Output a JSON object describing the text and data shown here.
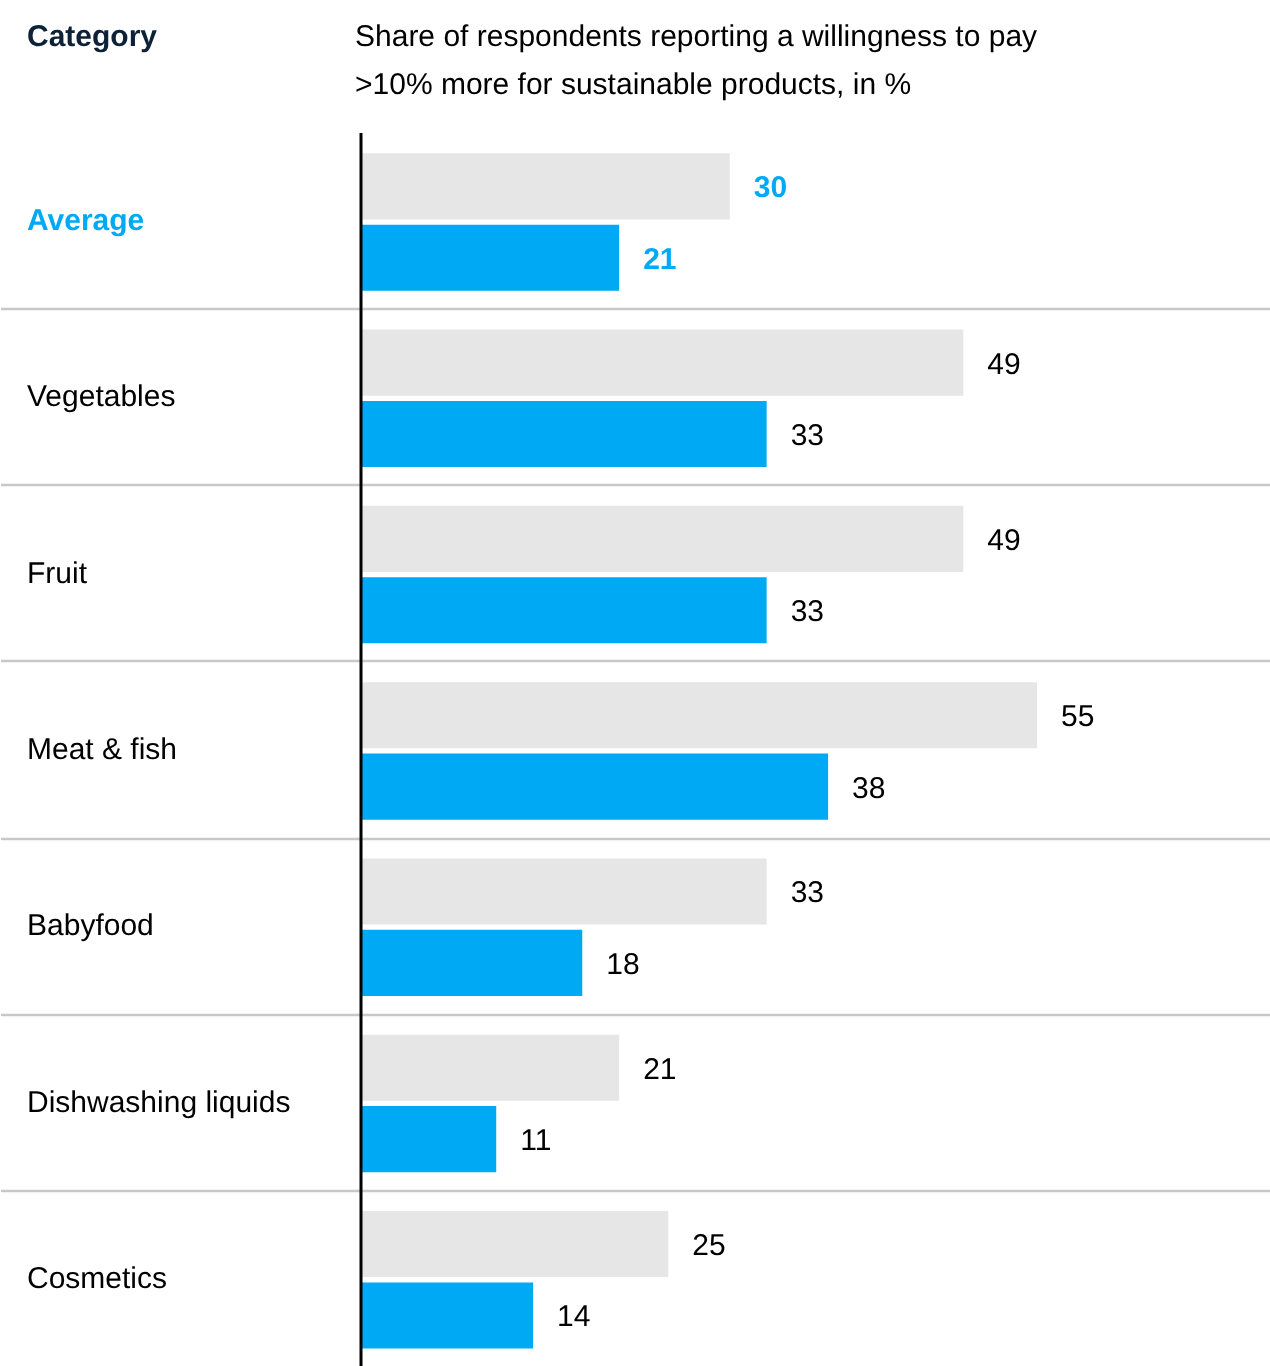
{
  "chart_data": {
    "type": "bar",
    "orientation": "horizontal",
    "title": "Share of respondents reporting a willingness to pay >10% more for sustainable products, in %",
    "ylabel": "Category",
    "categories": [
      "Average",
      "Vegetables",
      "Fruit",
      "Meat & fish",
      "Babyfood",
      "Dishwashing liquids",
      "Cosmetics"
    ],
    "series": [
      {
        "color": "#e6e6e6",
        "values": [
          30,
          49,
          49,
          55,
          33,
          21,
          25
        ]
      },
      {
        "color": "#00a9f4",
        "values": [
          21,
          33,
          33,
          38,
          18,
          11,
          14
        ]
      }
    ],
    "data_labels": true,
    "grid": "y"
  }
}
